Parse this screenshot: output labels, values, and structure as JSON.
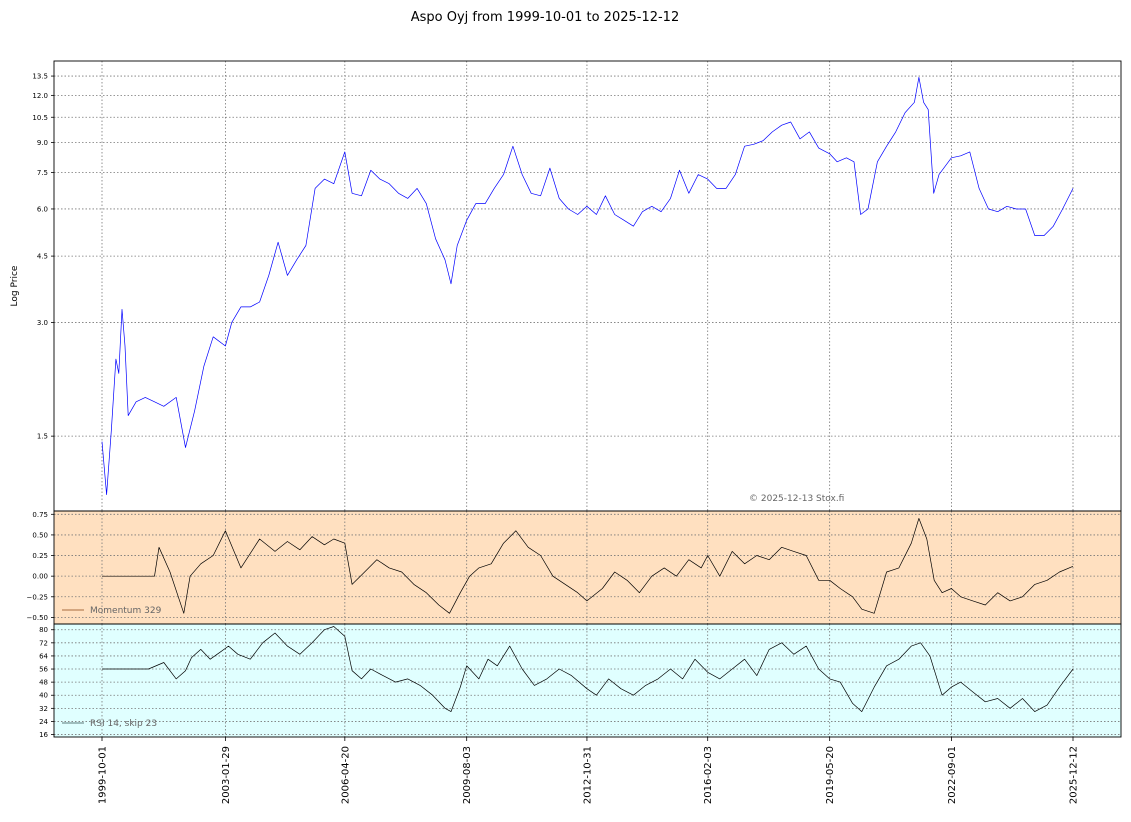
{
  "chart_data": [
    {
      "type": "line",
      "panel": "price",
      "title": "Aspo Oyj from 1999-10-01 to 2025-12-12",
      "ylabel": "Log Price",
      "y_scale": "log",
      "ylim": [
        0.95,
        14.8
      ],
      "yticks": [
        1.5,
        3.0,
        4.5,
        6.0,
        7.5,
        9.0,
        10.5,
        12.0,
        13.5
      ],
      "ytick_labels": [
        "1.5",
        "3.0",
        "4.5",
        "6.0",
        "7.5",
        "9.0",
        "10.5",
        "12.0",
        "13.5"
      ],
      "x_range": [
        "1999-10-01",
        "2025-12-12"
      ],
      "xticks": [
        "1999-10-01",
        "2003-01-29",
        "2006-04-20",
        "2009-08-03",
        "2012-10-31",
        "2016-02-03",
        "2019-05-20",
        "2022-09-01",
        "2025-12-12"
      ],
      "grid": true,
      "annotation": "© 2025-12-13 Stox.fi",
      "colors": {
        "line": "#0000ff"
      },
      "series": [
        {
          "x": [
            "1999-10-01",
            "1999-11-15",
            "2000-01-01",
            "2000-02-15",
            "2000-03-15",
            "2000-04-15",
            "2000-05-15",
            "2000-06-15",
            "2000-09-01",
            "2000-12-01",
            "2001-03-01",
            "2001-06-01",
            "2001-10-01",
            "2002-01-01",
            "2002-04-01",
            "2002-07-01",
            "2002-10-01",
            "2003-01-29",
            "2003-04-01",
            "2003-07-01",
            "2003-10-01",
            "2004-01-01",
            "2004-04-01",
            "2004-07-01",
            "2004-10-01",
            "2005-01-01",
            "2005-04-01",
            "2005-07-01",
            "2005-10-01",
            "2006-01-01",
            "2006-04-20",
            "2006-07-01",
            "2006-10-01",
            "2007-01-01",
            "2007-04-01",
            "2007-07-01",
            "2007-10-01",
            "2008-01-01",
            "2008-04-01",
            "2008-07-01",
            "2008-10-01",
            "2009-01-01",
            "2009-03-01",
            "2009-05-01",
            "2009-08-03",
            "2009-11-01",
            "2010-02-01",
            "2010-05-01",
            "2010-08-01",
            "2010-11-01",
            "2011-02-01",
            "2011-05-01",
            "2011-08-01",
            "2011-11-01",
            "2012-02-01",
            "2012-05-01",
            "2012-08-01",
            "2012-10-31",
            "2013-02-01",
            "2013-05-01",
            "2013-08-01",
            "2013-11-01",
            "2014-02-01",
            "2014-05-01",
            "2014-08-01",
            "2014-11-01",
            "2015-02-01",
            "2015-05-01",
            "2015-08-01",
            "2015-11-01",
            "2016-02-03",
            "2016-05-01",
            "2016-08-01",
            "2016-11-01",
            "2017-02-01",
            "2017-05-01",
            "2017-08-01",
            "2017-11-01",
            "2018-02-01",
            "2018-05-01",
            "2018-08-01",
            "2018-11-01",
            "2019-02-01",
            "2019-05-20",
            "2019-08-01",
            "2019-11-01",
            "2020-01-15",
            "2020-03-20",
            "2020-06-01",
            "2020-09-01",
            "2020-12-01",
            "2021-03-01",
            "2021-06-01",
            "2021-09-01",
            "2021-10-15",
            "2021-12-01",
            "2022-01-15",
            "2022-03-10",
            "2022-05-01",
            "2022-09-01",
            "2022-12-01",
            "2023-03-01",
            "2023-06-01",
            "2023-09-01",
            "2023-12-01",
            "2024-03-01",
            "2024-06-01",
            "2024-09-01",
            "2024-12-01",
            "2025-03-01",
            "2025-06-01",
            "2025-09-01",
            "2025-12-12"
          ],
          "y": [
            1.45,
            1.05,
            1.55,
            2.4,
            2.2,
            3.25,
            2.6,
            1.7,
            1.85,
            1.9,
            1.85,
            1.8,
            1.9,
            1.4,
            1.75,
            2.3,
            2.75,
            2.6,
            3.0,
            3.3,
            3.3,
            3.4,
            4.0,
            4.9,
            4.0,
            4.4,
            4.8,
            6.8,
            7.2,
            7.0,
            8.5,
            6.6,
            6.5,
            7.6,
            7.2,
            7.0,
            6.6,
            6.4,
            6.8,
            6.2,
            5.0,
            4.4,
            3.8,
            4.8,
            5.6,
            6.2,
            6.2,
            6.8,
            7.4,
            8.8,
            7.4,
            6.6,
            6.5,
            7.7,
            6.4,
            6.0,
            5.8,
            6.1,
            5.8,
            6.5,
            5.8,
            5.6,
            5.4,
            5.9,
            6.1,
            5.9,
            6.4,
            7.6,
            6.6,
            7.4,
            7.2,
            6.8,
            6.8,
            7.4,
            8.8,
            8.9,
            9.1,
            9.6,
            10.0,
            10.2,
            9.2,
            9.6,
            8.7,
            8.4,
            8.0,
            8.2,
            8.0,
            5.8,
            6.0,
            8.0,
            8.8,
            9.6,
            10.8,
            11.5,
            13.4,
            11.5,
            11.0,
            6.6,
            7.4,
            8.2,
            8.3,
            8.5,
            6.8,
            6.0,
            5.9,
            6.1,
            6.0,
            6.0,
            5.1,
            5.1,
            5.4,
            6.0,
            6.8
          ]
        }
      ]
    },
    {
      "type": "line",
      "panel": "momentum",
      "ylim": [
        -0.58,
        0.79
      ],
      "yticks": [
        -0.5,
        -0.25,
        0.0,
        0.25,
        0.5,
        0.75
      ],
      "ytick_labels": [
        "−0.50",
        "−0.25",
        "0.00",
        "0.25",
        "0.50",
        "0.75"
      ],
      "grid": true,
      "legend": {
        "entry": "Momentum 329",
        "placement": "lower-left"
      },
      "colors": {
        "background": "#ffe0c0",
        "line": "#000000",
        "legend_line": "#8b4513"
      },
      "series": [
        {
          "name": "Momentum 329",
          "x": [
            "1999-10-01",
            "2001-03-01",
            "2001-04-15",
            "2001-08-01",
            "2001-12-15",
            "2002-02-15",
            "2002-06-01",
            "2002-10-01",
            "2003-01-29",
            "2003-07-01",
            "2004-01-01",
            "2004-06-01",
            "2004-10-01",
            "2005-02-01",
            "2005-06-01",
            "2005-10-01",
            "2006-01-01",
            "2006-04-20",
            "2006-07-01",
            "2006-11-01",
            "2007-03-01",
            "2007-07-01",
            "2007-11-01",
            "2008-03-01",
            "2008-07-01",
            "2008-11-01",
            "2009-02-15",
            "2009-06-01",
            "2009-09-01",
            "2009-12-01",
            "2010-04-01",
            "2010-08-01",
            "2010-12-01",
            "2011-04-01",
            "2011-08-01",
            "2011-12-01",
            "2012-04-01",
            "2012-08-01",
            "2012-10-31",
            "2013-04-01",
            "2013-08-01",
            "2013-12-01",
            "2014-04-01",
            "2014-08-01",
            "2014-12-01",
            "2015-04-01",
            "2015-08-01",
            "2015-12-01",
            "2016-02-03",
            "2016-06-01",
            "2016-10-01",
            "2017-02-01",
            "2017-06-01",
            "2017-10-01",
            "2018-02-01",
            "2018-06-01",
            "2018-10-01",
            "2019-02-01",
            "2019-05-20",
            "2019-09-01",
            "2020-01-01",
            "2020-04-01",
            "2020-08-01",
            "2020-12-01",
            "2021-04-01",
            "2021-08-01",
            "2021-10-15",
            "2022-01-01",
            "2022-03-15",
            "2022-06-01",
            "2022-09-01",
            "2022-12-01",
            "2023-04-01",
            "2023-08-01",
            "2023-12-01",
            "2024-04-01",
            "2024-08-01",
            "2024-12-01",
            "2025-04-01",
            "2025-08-01",
            "2025-12-12"
          ],
          "y": [
            0.0,
            0.0,
            0.35,
            0.05,
            -0.45,
            0.0,
            0.15,
            0.25,
            0.55,
            0.1,
            0.45,
            0.3,
            0.42,
            0.32,
            0.48,
            0.38,
            0.45,
            0.4,
            -0.1,
            0.05,
            0.2,
            0.1,
            0.05,
            -0.1,
            -0.2,
            -0.35,
            -0.45,
            -0.2,
            0.0,
            0.1,
            0.15,
            0.4,
            0.55,
            0.35,
            0.25,
            0.0,
            -0.1,
            -0.2,
            -0.3,
            -0.15,
            0.05,
            -0.05,
            -0.2,
            0.0,
            0.1,
            0.0,
            0.2,
            0.1,
            0.25,
            0.0,
            0.3,
            0.15,
            0.25,
            0.2,
            0.35,
            0.3,
            0.25,
            -0.05,
            -0.05,
            -0.15,
            -0.25,
            -0.4,
            -0.45,
            0.05,
            0.1,
            0.4,
            0.7,
            0.45,
            -0.05,
            -0.2,
            -0.15,
            -0.25,
            -0.3,
            -0.35,
            -0.2,
            -0.3,
            -0.25,
            -0.1,
            -0.05,
            0.05,
            0.12
          ]
        }
      ]
    },
    {
      "type": "line",
      "panel": "rsi",
      "ylim": [
        14.5,
        83.5
      ],
      "yticks": [
        16,
        24,
        32,
        40,
        48,
        56,
        64,
        72,
        80
      ],
      "ytick_labels": [
        "16",
        "24",
        "32",
        "40",
        "48",
        "56",
        "64",
        "72",
        "80"
      ],
      "grid": true,
      "legend": {
        "entry": "RSI 14, skip 23",
        "placement": "lower-left"
      },
      "colors": {
        "background": "#e0ffff",
        "line": "#000000",
        "legend_line": "#2f4f4f"
      },
      "series": [
        {
          "name": "RSI 14, skip 23",
          "x": [
            "1999-10-01",
            "2000-09-01",
            "2001-01-01",
            "2001-06-01",
            "2001-10-01",
            "2002-01-01",
            "2002-03-01",
            "2002-06-01",
            "2002-09-01",
            "2002-12-01",
            "2003-03-01",
            "2003-06-01",
            "2003-10-01",
            "2004-02-01",
            "2004-06-01",
            "2004-10-01",
            "2005-02-01",
            "2005-06-01",
            "2005-10-01",
            "2006-01-01",
            "2006-04-20",
            "2006-07-01",
            "2006-10-01",
            "2007-01-01",
            "2007-05-01",
            "2007-09-01",
            "2008-01-01",
            "2008-05-01",
            "2008-09-01",
            "2009-01-01",
            "2009-03-01",
            "2009-06-01",
            "2009-08-03",
            "2009-12-01",
            "2010-03-01",
            "2010-06-01",
            "2010-10-01",
            "2011-02-01",
            "2011-06-01",
            "2011-10-01",
            "2012-02-01",
            "2012-06-01",
            "2012-10-31",
            "2013-02-01",
            "2013-06-01",
            "2013-10-01",
            "2014-02-01",
            "2014-06-01",
            "2014-10-01",
            "2015-02-01",
            "2015-06-01",
            "2015-10-01",
            "2016-02-03",
            "2016-06-01",
            "2016-10-01",
            "2017-02-01",
            "2017-06-01",
            "2017-10-01",
            "2018-02-01",
            "2018-06-01",
            "2018-10-01",
            "2019-02-01",
            "2019-05-20",
            "2019-09-01",
            "2020-01-01",
            "2020-04-01",
            "2020-08-01",
            "2020-12-01",
            "2021-04-01",
            "2021-08-01",
            "2021-11-01",
            "2022-02-01",
            "2022-06-01",
            "2022-09-01",
            "2022-12-01",
            "2023-04-01",
            "2023-08-01",
            "2023-12-01",
            "2024-04-01",
            "2024-08-01",
            "2024-12-01",
            "2025-04-01",
            "2025-08-01",
            "2025-12-12"
          ],
          "y": [
            56,
            56,
            56,
            60,
            50,
            55,
            63,
            68,
            62,
            66,
            70,
            65,
            62,
            72,
            78,
            70,
            65,
            72,
            80,
            82,
            76,
            55,
            50,
            56,
            52,
            48,
            50,
            46,
            40,
            32,
            30,
            45,
            58,
            50,
            62,
            58,
            70,
            56,
            46,
            50,
            56,
            52,
            44,
            40,
            50,
            44,
            40,
            46,
            50,
            56,
            50,
            62,
            54,
            50,
            56,
            62,
            52,
            68,
            72,
            65,
            70,
            56,
            50,
            48,
            35,
            30,
            45,
            58,
            62,
            70,
            72,
            64,
            40,
            45,
            48,
            42,
            36,
            38,
            32,
            38,
            30,
            34,
            45,
            56
          ]
        }
      ]
    }
  ]
}
